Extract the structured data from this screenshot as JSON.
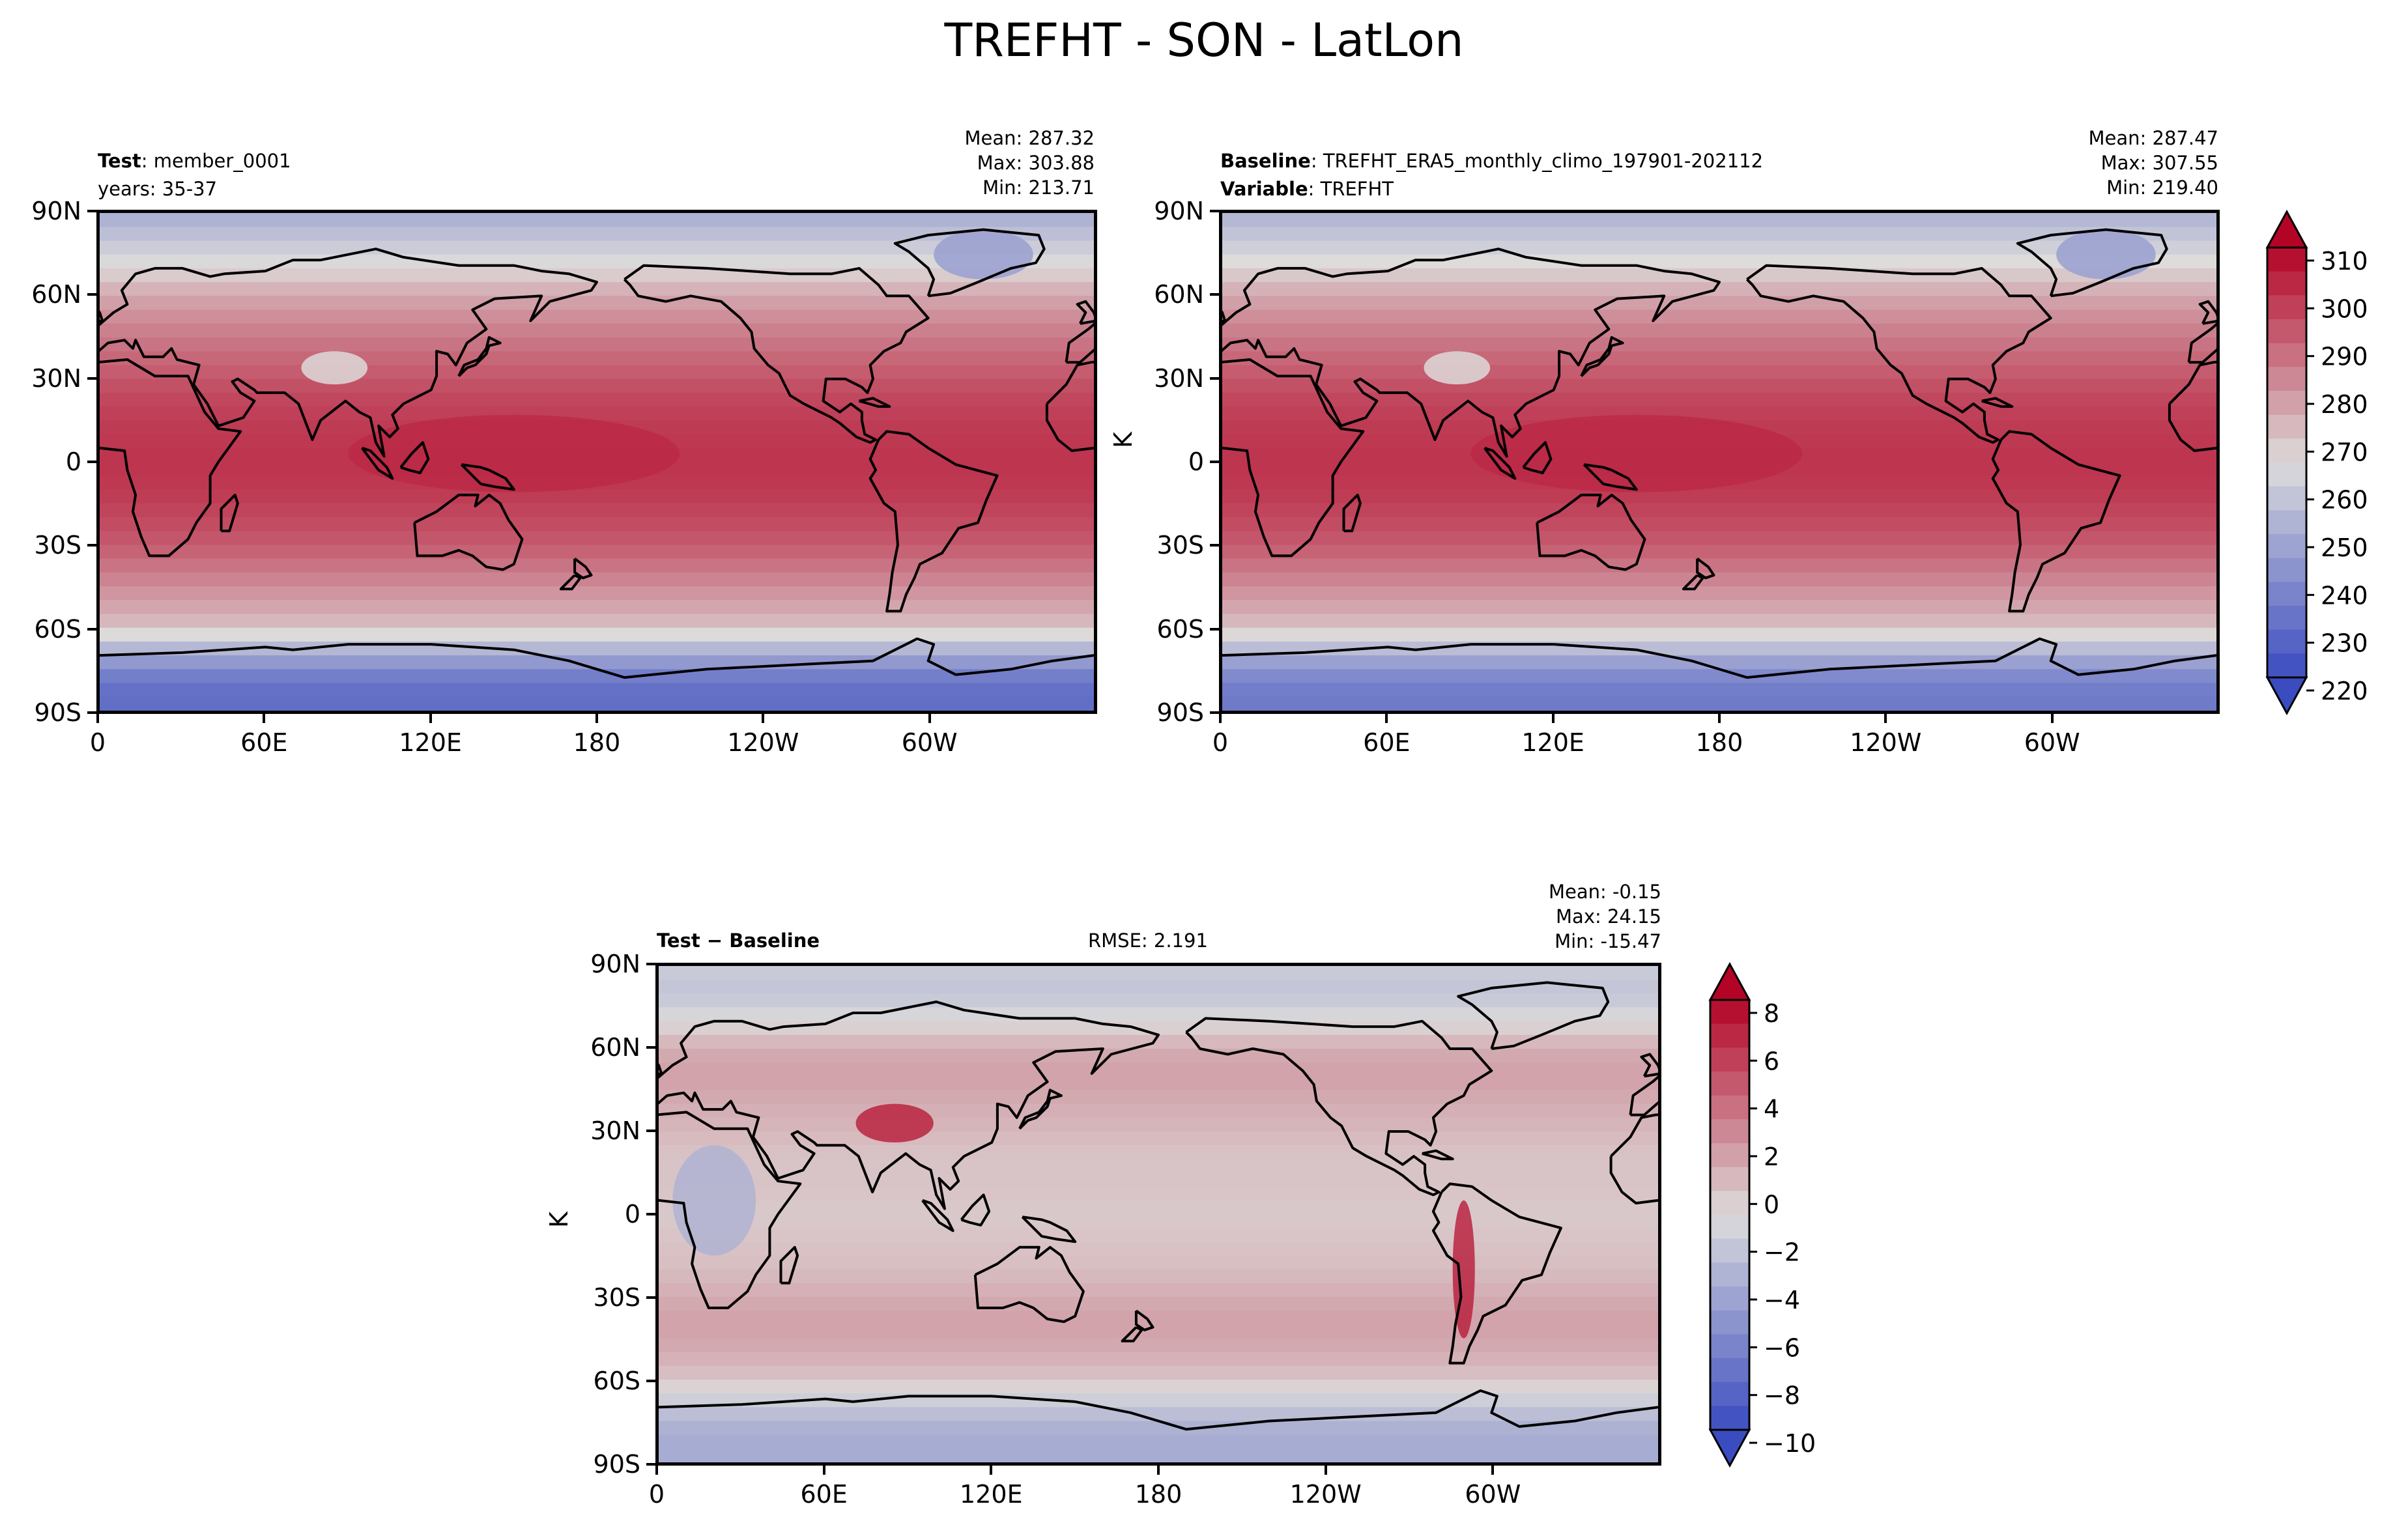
{
  "figure": {
    "title": "TREFHT - SON - LatLon"
  },
  "colors": {
    "cold": "#3a4cc0",
    "neutral": "#dddcdb",
    "warm": "#b40426",
    "coast": "#000000"
  },
  "icons": [
    "colorbar-max-arrow",
    "colorbar-min-arrow"
  ],
  "axes": {
    "lat_ticks": [
      "90N",
      "60N",
      "30N",
      "0",
      "30S",
      "60S",
      "90S"
    ],
    "lon_ticks": [
      "0",
      "60E",
      "120E",
      "180",
      "120W",
      "60W"
    ]
  },
  "panels": {
    "test": {
      "label_bold": "Test",
      "label_sep": ": ",
      "label_value": "member_0001",
      "line2": "years: 35-37",
      "mean": "Mean: 287.32",
      "max": "Max: 303.88",
      "min": "Min: 213.71"
    },
    "baseline": {
      "label_bold": "Baseline",
      "label_sep": ": ",
      "label_value": "TREFHT_ERA5_monthly_climo_197901-202112",
      "line2_bold": "Variable",
      "line2_sep": ": ",
      "line2_value": "TREFHT",
      "mean": "Mean: 287.47",
      "max": "Max: 307.55",
      "min": "Min: 219.40",
      "ylabel": "K"
    },
    "diff": {
      "label": "Test − Baseline",
      "rmse": "RMSE: 2.191",
      "mean": "Mean: -0.15",
      "max": "Max: 24.15",
      "min": "Min: -15.47",
      "ylabel": "K"
    }
  },
  "colorbars": {
    "main": {
      "ticks": [
        "310",
        "300",
        "290",
        "280",
        "270",
        "260",
        "250",
        "240",
        "230",
        "220"
      ]
    },
    "diff": {
      "ticks": [
        "8",
        "6",
        "4",
        "2",
        "0",
        "−2",
        "−4",
        "−6",
        "−8",
        "−10"
      ]
    }
  },
  "chart_data": [
    {
      "type": "heatmap",
      "panel": "Test",
      "title": "Test: member_0001",
      "subtitle": "years: 35-37",
      "variable": "TREFHT",
      "units": "K",
      "stats": {
        "mean": 287.32,
        "max": 303.88,
        "min": 213.71
      },
      "xlim": [
        0,
        360
      ],
      "ylim": [
        -90,
        90
      ],
      "xticks": [
        "0",
        "60E",
        "120E",
        "180",
        "120W",
        "60W"
      ],
      "yticks": [
        "90N",
        "60N",
        "30N",
        "0",
        "30S",
        "60S",
        "90S"
      ],
      "color_range": [
        220,
        310
      ],
      "zonal_profile": {
        "lat": [
          90,
          80,
          70,
          60,
          50,
          40,
          30,
          20,
          10,
          0,
          -10,
          -20,
          -30,
          -40,
          -50,
          -60,
          -70,
          -80,
          -90
        ],
        "value": [
          250,
          258,
          266,
          276,
          283,
          288,
          293,
          297,
          299,
          300,
          299,
          296,
          292,
          285,
          278,
          271,
          248,
          232,
          230
        ]
      }
    },
    {
      "type": "heatmap",
      "panel": "Baseline",
      "title": "Baseline: TREFHT_ERA5_monthly_climo_197901-202112",
      "subtitle": "Variable: TREFHT",
      "variable": "TREFHT",
      "units": "K",
      "stats": {
        "mean": 287.47,
        "max": 307.55,
        "min": 219.4
      },
      "xlim": [
        0,
        360
      ],
      "ylim": [
        -90,
        90
      ],
      "xticks": [
        "0",
        "60E",
        "120E",
        "180",
        "120W",
        "60W"
      ],
      "yticks": [
        "90N",
        "60N",
        "30N",
        "0",
        "30S",
        "60S",
        "90S"
      ],
      "color_range": [
        220,
        310
      ],
      "zonal_profile": {
        "lat": [
          90,
          80,
          70,
          60,
          50,
          40,
          30,
          20,
          10,
          0,
          -10,
          -20,
          -30,
          -40,
          -50,
          -60,
          -70,
          -80,
          -90
        ],
        "value": [
          252,
          259,
          267,
          276,
          283,
          288,
          293,
          297,
          299,
          300,
          299,
          296,
          292,
          285,
          278,
          271,
          250,
          236,
          234
        ]
      }
    },
    {
      "type": "heatmap",
      "panel": "Test - Baseline",
      "title": "Test − Baseline",
      "rmse": 2.191,
      "units": "K",
      "stats": {
        "mean": -0.15,
        "max": 24.15,
        "min": -15.47
      },
      "xlim": [
        0,
        360
      ],
      "ylim": [
        -90,
        90
      ],
      "xticks": [
        "0",
        "60E",
        "120E",
        "180",
        "120W",
        "60W"
      ],
      "yticks": [
        "90N",
        "60N",
        "30N",
        "0",
        "30S",
        "60S",
        "90S"
      ],
      "color_range": [
        -10,
        8
      ],
      "zonal_profile": {
        "lat": [
          90,
          80,
          70,
          60,
          50,
          40,
          30,
          20,
          10,
          0,
          -10,
          -20,
          -30,
          -40,
          -50,
          -60,
          -70,
          -80,
          -90
        ],
        "value": [
          -2,
          -2.5,
          -1,
          1,
          1.5,
          1,
          0.5,
          0,
          0,
          -0.2,
          0,
          0.3,
          1,
          1.5,
          1,
          0,
          -2.5,
          -4,
          -4
        ]
      }
    }
  ]
}
